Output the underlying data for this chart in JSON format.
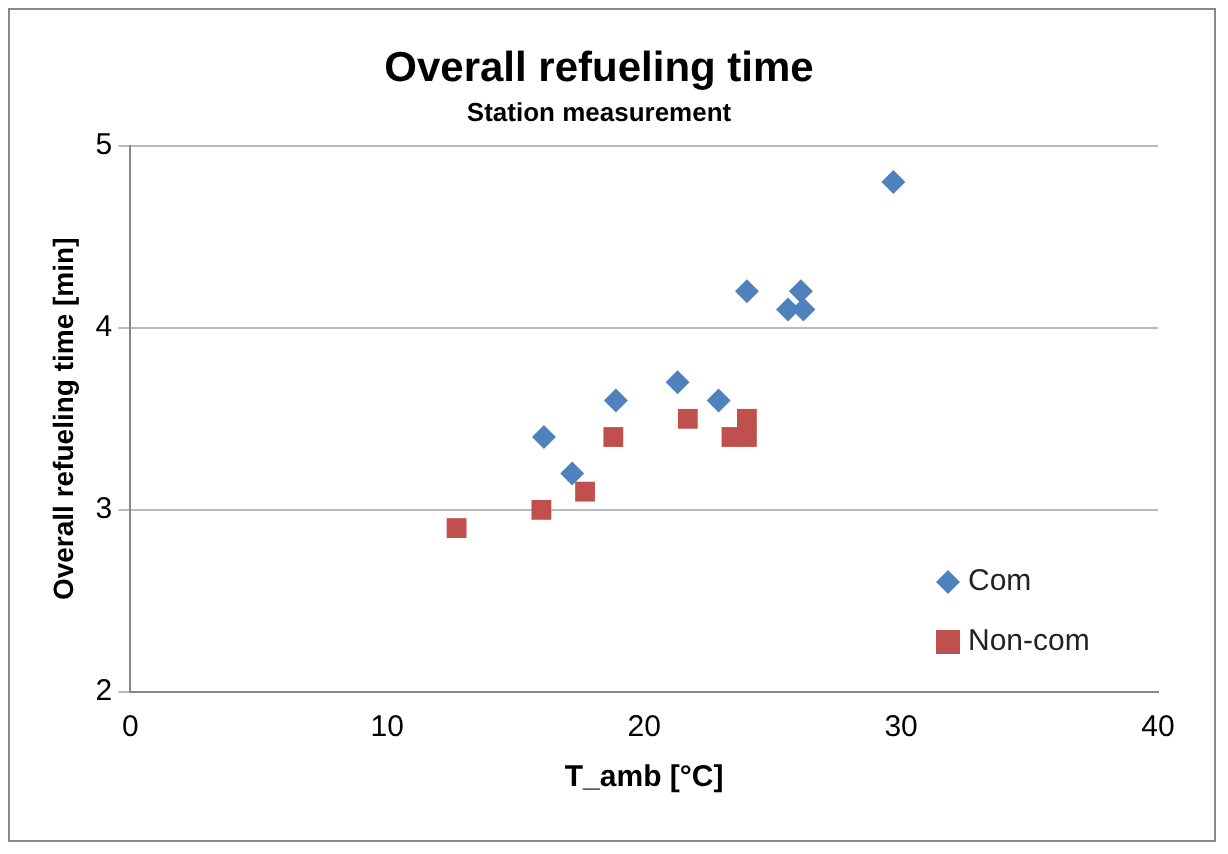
{
  "chart_data": {
    "type": "scatter",
    "title": "Overall refueling time",
    "subtitle": "Station measurement",
    "xlabel": "T_amb [°C]",
    "ylabel": "Overall refueling time [min]",
    "xlim": [
      0,
      40
    ],
    "xticks": [
      0,
      10,
      20,
      30,
      40
    ],
    "ylim": [
      2,
      5
    ],
    "yticks": [
      2,
      3,
      4,
      5
    ],
    "grid": "y",
    "legend": "bottom right",
    "series": [
      {
        "name": "Com",
        "color": "#4f81bd",
        "marker": "diamond",
        "x": [
          16.1,
          17.2,
          18.9,
          21.3,
          22.9,
          24.0,
          25.6,
          26.1,
          26.2,
          29.7
        ],
        "values": [
          3.4,
          3.2,
          3.6,
          3.7,
          3.6,
          4.2,
          4.1,
          4.2,
          4.1,
          4.8
        ]
      },
      {
        "name": "Non-com",
        "color": "#c0504d",
        "marker": "square",
        "x": [
          12.7,
          16.0,
          17.7,
          18.8,
          21.7,
          23.4,
          24.0,
          24.0
        ],
        "values": [
          2.9,
          3.0,
          3.1,
          3.4,
          3.5,
          3.4,
          3.5,
          3.4
        ]
      }
    ]
  }
}
